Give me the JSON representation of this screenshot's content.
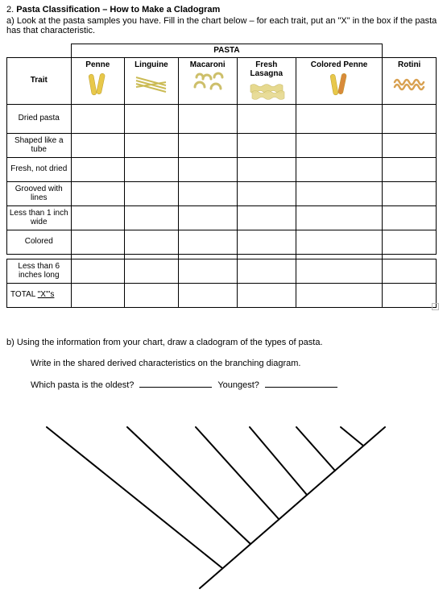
{
  "heading": {
    "number": "2.",
    "title_bold": "Pasta Classification – How to Make a Cladogram"
  },
  "part_a": {
    "label": "a)",
    "text": "Look at the pasta samples you have. Fill in the chart below – for each trait, put an \"X\" in the box if the pasta has that characteristic."
  },
  "table": {
    "group_header": "PASTA",
    "trait_header": "Trait",
    "columns": [
      "Penne",
      "Linguine",
      "Macaroni",
      "Fresh Lasagna",
      "Colored Penne",
      "Rotini"
    ],
    "traits": [
      "Dried pasta",
      "Shaped like a tube",
      "Fresh, not dried",
      "Grooved with lines",
      "Less than 1 inch wide",
      "Colored"
    ],
    "extra_traits": [
      "Less than 6 inches long",
      "TOTAL \"X\"'s"
    ],
    "icon_colors": {
      "penne": "#e8c84a",
      "linguine": "#e4d77a",
      "macaroni": "#d9d28a",
      "lasagna": "#e6d98f",
      "colored_penne_a": "#e8c84a",
      "colored_penne_b": "#d98a3a",
      "rotini": "#e0b060"
    }
  },
  "part_b": {
    "intro": "b) Using the information from your chart, draw a cladogram of the types of pasta.",
    "line2": "Write in the shared derived characteristics on the branching diagram.",
    "q_oldest": "Which pasta is the oldest?",
    "q_youngest": "Youngest?"
  },
  "cladogram": {
    "stroke": "#000000",
    "stroke_width": 2,
    "branches": 6
  }
}
